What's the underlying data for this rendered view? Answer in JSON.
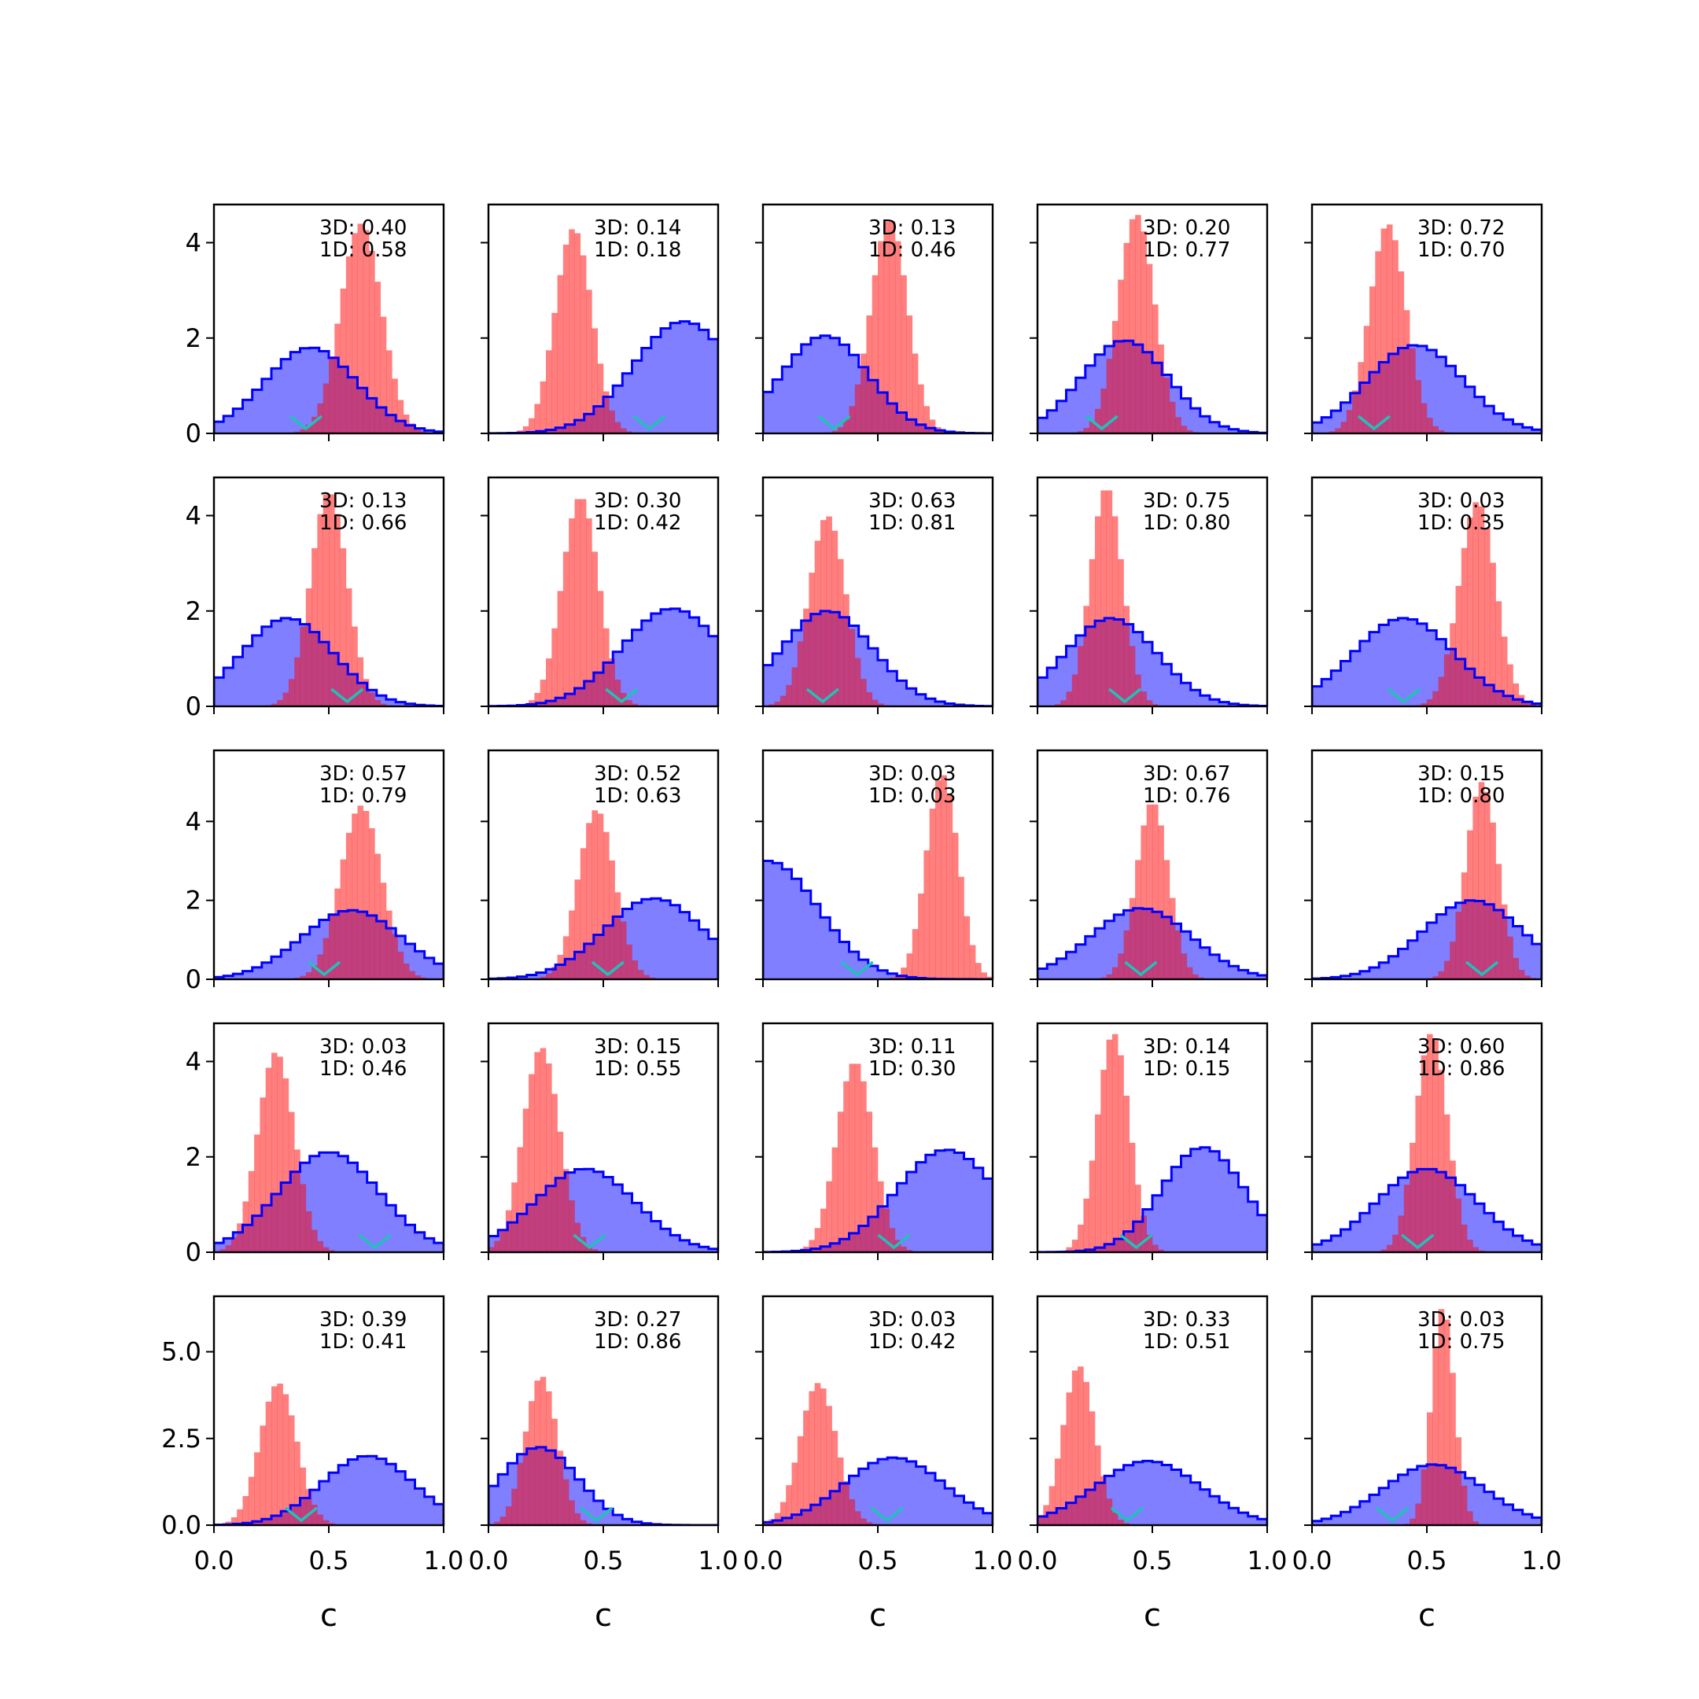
{
  "chart_data": {
    "type": "histogram-grid",
    "rows": 5,
    "cols": 5,
    "xlabel": "c",
    "xlim": [
      0,
      1
    ],
    "x_ticks": [
      0.0,
      0.5,
      1.0
    ],
    "x_tick_labels": [
      "0.0",
      "0.5",
      "1.0"
    ],
    "row_ylims": [
      [
        0,
        4.8
      ],
      [
        0,
        4.8
      ],
      [
        0,
        5.8
      ],
      [
        0,
        4.8
      ],
      [
        0,
        6.6
      ]
    ],
    "row_y_ticks": [
      [
        0,
        2,
        4
      ],
      [
        0,
        2,
        4
      ],
      [
        0,
        2,
        4
      ],
      [
        0,
        2,
        4
      ],
      [
        0,
        2.5,
        5
      ]
    ],
    "row_y_tick_labels": [
      [
        "0",
        "2",
        "4"
      ],
      [
        "0",
        "2",
        "4"
      ],
      [
        "0",
        "2",
        "4"
      ],
      [
        "0",
        "2",
        "4"
      ],
      [
        "0.0",
        "2.5",
        "5.0"
      ]
    ],
    "colors": {
      "blue": "#0000ff",
      "red": "#ff0000",
      "marker": "#20c2b8"
    },
    "panels": [
      {
        "label_3d": "3D: 0.40",
        "label_1d": "1D: 0.58",
        "blue": {
          "mu": 0.42,
          "sd": 0.2,
          "peak": 1.8
        },
        "red": {
          "mu": 0.64,
          "sd": 0.09,
          "peak": 4.4
        },
        "marker": 0.4
      },
      {
        "label_3d": "3D: 0.14",
        "label_1d": "1D: 0.18",
        "blue": {
          "mu": 0.85,
          "sd": 0.22,
          "peak": 2.35
        },
        "red": {
          "mu": 0.37,
          "sd": 0.08,
          "peak": 4.3
        },
        "marker": 0.7
      },
      {
        "label_3d": "3D: 0.13",
        "label_1d": "1D: 0.46",
        "blue": {
          "mu": 0.27,
          "sd": 0.19,
          "peak": 2.05
        },
        "red": {
          "mu": 0.55,
          "sd": 0.08,
          "peak": 4.5
        },
        "marker": 0.31
      },
      {
        "label_3d": "3D: 0.20",
        "label_1d": "1D: 0.77",
        "blue": {
          "mu": 0.38,
          "sd": 0.19,
          "peak": 1.95
        },
        "red": {
          "mu": 0.43,
          "sd": 0.08,
          "peak": 4.6
        },
        "marker": 0.28
      },
      {
        "label_3d": "3D: 0.72",
        "label_1d": "1D: 0.70",
        "blue": {
          "mu": 0.45,
          "sd": 0.21,
          "peak": 1.85
        },
        "red": {
          "mu": 0.33,
          "sd": 0.08,
          "peak": 4.4
        },
        "marker": 0.27
      },
      {
        "label_3d": "3D: 0.13",
        "label_1d": "1D: 0.66",
        "blue": {
          "mu": 0.32,
          "sd": 0.2,
          "peak": 1.85
        },
        "red": {
          "mu": 0.5,
          "sd": 0.08,
          "peak": 4.5
        },
        "marker": 0.58
      },
      {
        "label_3d": "3D: 0.30",
        "label_1d": "1D: 0.42",
        "blue": {
          "mu": 0.8,
          "sd": 0.22,
          "peak": 2.05
        },
        "red": {
          "mu": 0.4,
          "sd": 0.08,
          "peak": 4.4
        },
        "marker": 0.58
      },
      {
        "label_3d": "3D: 0.63",
        "label_1d": "1D: 0.81",
        "blue": {
          "mu": 0.28,
          "sd": 0.2,
          "peak": 2.0
        },
        "red": {
          "mu": 0.28,
          "sd": 0.08,
          "peak": 4.0
        },
        "marker": 0.26
      },
      {
        "label_3d": "3D: 0.75",
        "label_1d": "1D: 0.80",
        "blue": {
          "mu": 0.32,
          "sd": 0.2,
          "peak": 1.85
        },
        "red": {
          "mu": 0.3,
          "sd": 0.07,
          "peak": 4.6
        },
        "marker": 0.38
      },
      {
        "label_3d": "3D: 0.03",
        "label_1d": "1D: 0.35",
        "blue": {
          "mu": 0.4,
          "sd": 0.22,
          "peak": 1.85
        },
        "red": {
          "mu": 0.72,
          "sd": 0.08,
          "peak": 4.3
        },
        "marker": 0.4
      },
      {
        "label_3d": "3D: 0.57",
        "label_1d": "1D: 0.79",
        "blue": {
          "mu": 0.6,
          "sd": 0.22,
          "peak": 1.75
        },
        "red": {
          "mu": 0.64,
          "sd": 0.09,
          "peak": 4.4
        },
        "marker": 0.48
      },
      {
        "label_3d": "3D: 0.52",
        "label_1d": "1D: 0.63",
        "blue": {
          "mu": 0.72,
          "sd": 0.22,
          "peak": 2.05
        },
        "red": {
          "mu": 0.47,
          "sd": 0.08,
          "peak": 4.3
        },
        "marker": 0.52
      },
      {
        "label_3d": "3D: 0.03",
        "label_1d": "1D: 0.03",
        "blue": {
          "mu": 0.02,
          "sd": 0.22,
          "peak": 3.0
        },
        "red": {
          "mu": 0.78,
          "sd": 0.07,
          "peak": 5.2
        },
        "marker": 0.41
      },
      {
        "label_3d": "3D: 0.67",
        "label_1d": "1D: 0.76",
        "blue": {
          "mu": 0.45,
          "sd": 0.22,
          "peak": 1.8
        },
        "red": {
          "mu": 0.5,
          "sd": 0.07,
          "peak": 4.5
        },
        "marker": 0.45
      },
      {
        "label_3d": "3D: 0.15",
        "label_1d": "1D: 0.80",
        "blue": {
          "mu": 0.7,
          "sd": 0.22,
          "peak": 2.0
        },
        "red": {
          "mu": 0.74,
          "sd": 0.07,
          "peak": 5.0
        },
        "marker": 0.74
      },
      {
        "label_3d": "3D: 0.03",
        "label_1d": "1D: 0.46",
        "blue": {
          "mu": 0.5,
          "sd": 0.22,
          "peak": 2.1
        },
        "red": {
          "mu": 0.27,
          "sd": 0.08,
          "peak": 4.2
        },
        "marker": 0.7
      },
      {
        "label_3d": "3D: 0.15",
        "label_1d": "1D: 0.55",
        "blue": {
          "mu": 0.42,
          "sd": 0.22,
          "peak": 1.75
        },
        "red": {
          "mu": 0.23,
          "sd": 0.08,
          "peak": 4.3
        },
        "marker": 0.44
      },
      {
        "label_3d": "3D: 0.11",
        "label_1d": "1D: 0.30",
        "blue": {
          "mu": 0.8,
          "sd": 0.22,
          "peak": 2.15
        },
        "red": {
          "mu": 0.4,
          "sd": 0.08,
          "peak": 4.0
        },
        "marker": 0.57
      },
      {
        "label_3d": "3D: 0.14",
        "label_1d": "1D: 0.15",
        "blue": {
          "mu": 0.72,
          "sd": 0.18,
          "peak": 2.2
        },
        "red": {
          "mu": 0.33,
          "sd": 0.07,
          "peak": 4.6
        },
        "marker": 0.43
      },
      {
        "label_3d": "3D: 0.60",
        "label_1d": "1D: 0.86",
        "blue": {
          "mu": 0.5,
          "sd": 0.22,
          "peak": 1.75
        },
        "red": {
          "mu": 0.52,
          "sd": 0.07,
          "peak": 4.6
        },
        "marker": 0.46
      },
      {
        "label_3d": "3D: 0.39",
        "label_1d": "1D: 0.41",
        "blue": {
          "mu": 0.67,
          "sd": 0.2,
          "peak": 2.0
        },
        "red": {
          "mu": 0.28,
          "sd": 0.08,
          "peak": 4.1
        },
        "marker": 0.38
      },
      {
        "label_3d": "3D: 0.27",
        "label_1d": "1D: 0.86",
        "blue": {
          "mu": 0.22,
          "sd": 0.17,
          "peak": 2.25
        },
        "red": {
          "mu": 0.23,
          "sd": 0.07,
          "peak": 4.3
        },
        "marker": 0.47
      },
      {
        "label_3d": "3D: 0.03",
        "label_1d": "1D: 0.42",
        "blue": {
          "mu": 0.57,
          "sd": 0.22,
          "peak": 1.95
        },
        "red": {
          "mu": 0.24,
          "sd": 0.08,
          "peak": 4.1
        },
        "marker": 0.54
      },
      {
        "label_3d": "3D: 0.33",
        "label_1d": "1D: 0.51",
        "blue": {
          "mu": 0.48,
          "sd": 0.23,
          "peak": 1.85
        },
        "red": {
          "mu": 0.18,
          "sd": 0.07,
          "peak": 4.6
        },
        "marker": 0.39
      },
      {
        "label_3d": "3D: 0.03",
        "label_1d": "1D: 0.75",
        "blue": {
          "mu": 0.53,
          "sd": 0.22,
          "peak": 1.75
        },
        "red": {
          "mu": 0.57,
          "sd": 0.05,
          "peak": 6.3
        },
        "marker": 0.35
      }
    ]
  }
}
